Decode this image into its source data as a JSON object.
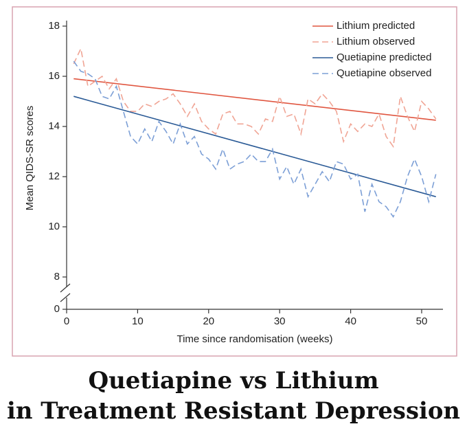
{
  "chart_data": {
    "type": "line",
    "title": [
      "Quetiapine vs Lithium",
      "in Treatment Resistant Depression"
    ],
    "x_label": "Time since randomisation (weeks)",
    "y_label": "Mean QIDS-SR scores",
    "xlim": [
      0,
      53
    ],
    "xticks": [
      0,
      10,
      20,
      30,
      40,
      50
    ],
    "ylim": [
      8,
      18
    ],
    "yticks": [
      0,
      8,
      10,
      12,
      14,
      16,
      18
    ],
    "axis_break": true,
    "legend": "top-right",
    "series": [
      {
        "name": "Lithium predicted",
        "color": "#e0553f",
        "dashed": false,
        "x": [
          1,
          52
        ],
        "values": [
          15.9,
          14.25
        ]
      },
      {
        "name": "Lithium observed",
        "color": "#f0a494",
        "dashed": true,
        "x": [
          1,
          2,
          3,
          4,
          5,
          6,
          7,
          8,
          9,
          10,
          11,
          12,
          13,
          14,
          15,
          16,
          17,
          18,
          19,
          20,
          21,
          22,
          23,
          24,
          25,
          26,
          27,
          28,
          29,
          30,
          31,
          32,
          33,
          34,
          35,
          36,
          37,
          38,
          39,
          40,
          41,
          42,
          43,
          44,
          45,
          46,
          47,
          48,
          49,
          50,
          51,
          52
        ],
        "values": [
          16.5,
          17.1,
          15.6,
          15.8,
          16.0,
          15.5,
          15.9,
          15.0,
          14.6,
          14.6,
          14.9,
          14.8,
          15.0,
          15.1,
          15.3,
          14.9,
          14.4,
          14.9,
          14.2,
          13.9,
          13.7,
          14.5,
          14.6,
          14.1,
          14.1,
          14.0,
          13.7,
          14.3,
          14.2,
          15.2,
          14.4,
          14.5,
          13.7,
          15.1,
          14.9,
          15.3,
          15.0,
          14.6,
          13.4,
          14.1,
          13.8,
          14.1,
          14.0,
          14.5,
          13.6,
          13.2,
          15.2,
          14.4,
          13.8,
          15.0,
          14.7,
          14.3
        ]
      },
      {
        "name": "Quetiapine predicted",
        "color": "#2a5a96",
        "dashed": false,
        "x": [
          1,
          52
        ],
        "values": [
          15.2,
          11.2
        ]
      },
      {
        "name": "Quetiapine observed",
        "color": "#7c9fd6",
        "dashed": true,
        "x": [
          1,
          2,
          3,
          4,
          5,
          6,
          7,
          8,
          9,
          10,
          11,
          12,
          13,
          14,
          15,
          16,
          17,
          18,
          19,
          20,
          21,
          22,
          23,
          24,
          25,
          26,
          27,
          28,
          29,
          30,
          31,
          32,
          33,
          34,
          35,
          36,
          37,
          38,
          39,
          40,
          41,
          42,
          43,
          44,
          45,
          46,
          47,
          48,
          49,
          50,
          51,
          52
        ],
        "values": [
          16.6,
          16.2,
          16.1,
          15.9,
          15.2,
          15.1,
          15.6,
          14.6,
          13.6,
          13.3,
          13.9,
          13.4,
          14.2,
          13.8,
          13.3,
          14.1,
          13.3,
          13.6,
          12.9,
          12.7,
          12.3,
          13.1,
          12.3,
          12.5,
          12.6,
          12.9,
          12.6,
          12.6,
          13.1,
          11.9,
          12.4,
          11.7,
          12.3,
          11.2,
          11.7,
          12.2,
          11.8,
          12.6,
          12.5,
          11.9,
          12.1,
          10.6,
          11.7,
          11.0,
          10.8,
          10.4,
          11.0,
          12.0,
          12.7,
          12.0,
          11.0,
          12.1
        ]
      }
    ]
  }
}
